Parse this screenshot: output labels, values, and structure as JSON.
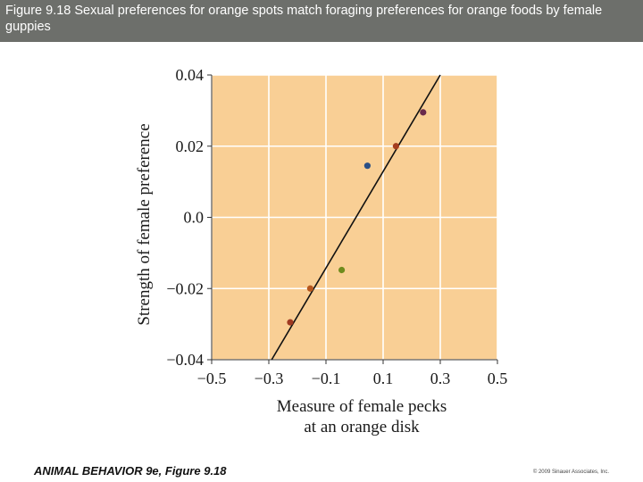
{
  "header": {
    "title": "Figure 9.18  Sexual preferences for orange spots match foraging preferences for orange foods by female guppies"
  },
  "footer": {
    "left": "ANIMAL BEHAVIOR 9e, Figure 9.18",
    "right": "© 2009 Sinauer Associates, Inc."
  },
  "chart_data": {
    "type": "scatter",
    "title": "",
    "xlabel": "Measure of female pecks at an orange disk",
    "xlabel_lines": [
      "Measure of female pecks",
      "at an orange disk"
    ],
    "ylabel": "Strength of female preference",
    "xlim": [
      -0.5,
      0.5
    ],
    "ylim": [
      -0.04,
      0.04
    ],
    "xticks": [
      -0.5,
      -0.3,
      -0.1,
      0.1,
      0.3,
      0.5
    ],
    "xtick_labels": [
      "−0.5",
      "−0.3",
      "−0.1",
      "0.1",
      "0.3",
      "0.5"
    ],
    "yticks": [
      -0.04,
      -0.02,
      0.0,
      0.02,
      0.04
    ],
    "ytick_labels": [
      "−0.04",
      "−0.02",
      "0.0",
      "0.02",
      "0.04"
    ],
    "grid": true,
    "background_color": "#f9cf95",
    "grid_color": "#ffffff",
    "points": [
      {
        "x": -0.225,
        "y": -0.0295,
        "color": "#a03a22"
      },
      {
        "x": -0.155,
        "y": -0.02,
        "color": "#b7571e"
      },
      {
        "x": -0.045,
        "y": -0.0148,
        "color": "#6f8b1d"
      },
      {
        "x": 0.045,
        "y": 0.0145,
        "color": "#2a4f86"
      },
      {
        "x": 0.145,
        "y": 0.02,
        "color": "#a53d1f"
      },
      {
        "x": 0.24,
        "y": 0.0295,
        "color": "#6a2a4c"
      }
    ],
    "fit_line": {
      "x": [
        -0.29,
        0.3
      ],
      "y": [
        -0.04,
        0.04
      ],
      "color": "#111111"
    }
  }
}
